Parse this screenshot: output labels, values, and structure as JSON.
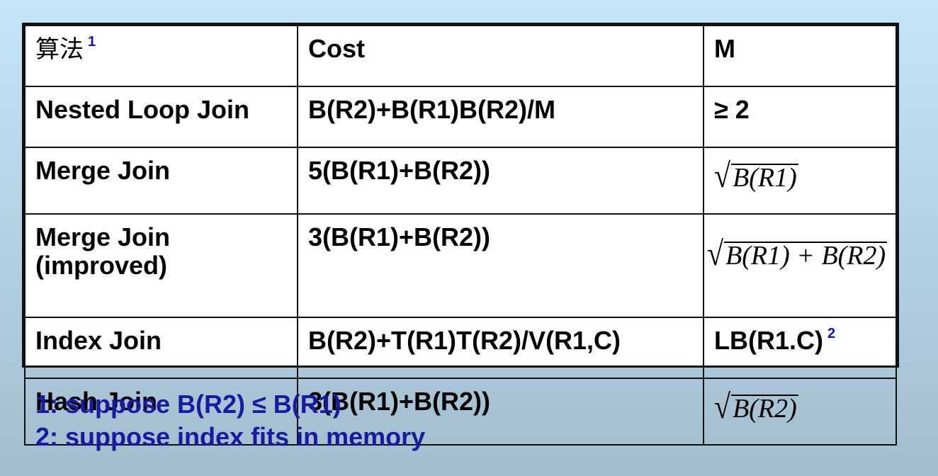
{
  "header": {
    "col_algorithm": "算法",
    "col_algorithm_note": "1",
    "col_cost": "Cost",
    "col_m": "M"
  },
  "rows": [
    {
      "algorithm": "Nested Loop Join",
      "cost": "B(R2)+B(R1)B(R2)/M",
      "m": "≥ 2"
    },
    {
      "algorithm": "Merge Join",
      "cost": "5(B(R1)+B(R2))",
      "m_math": "B(R1)"
    },
    {
      "algorithm_line1": "Merge Join",
      "algorithm_line2": "(improved)",
      "cost": "3(B(R1)+B(R2))",
      "m_math": "B(R1) + B(R2)"
    },
    {
      "algorithm": "Index Join",
      "cost": "B(R2)+T(R1)T(R2)/V(R1,C)",
      "m": "LB(R1.C)",
      "m_note": "2"
    },
    {
      "algorithm": "Hash Join",
      "cost": "3(B(R1)+B(R2))",
      "m_math": "B(R2)"
    }
  ],
  "footnotes": [
    "1: suppose B(R2) ≤ B(R1)",
    "2: suppose index fits in memory"
  ],
  "colors": {
    "note_blue": "#1010cc",
    "footnote_blue": "#1a1aa0"
  }
}
